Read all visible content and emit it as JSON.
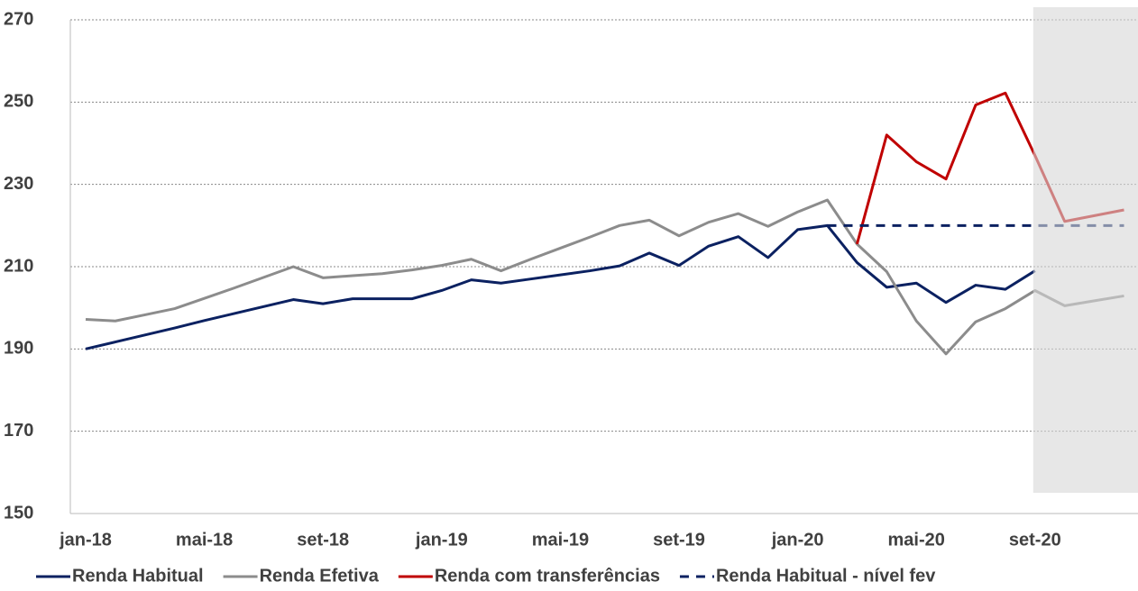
{
  "chart_data": {
    "type": "line",
    "categories": [
      "jan-18",
      null,
      null,
      null,
      "mai-18",
      null,
      null,
      null,
      "set-18",
      null,
      null,
      null,
      "jan-19",
      null,
      null,
      null,
      "mai-19",
      null,
      null,
      null,
      "set-19",
      null,
      null,
      null,
      "jan-20",
      null,
      null,
      null,
      "mai-20",
      null,
      null,
      null,
      "set-20",
      null,
      null,
      null
    ],
    "ylim": [
      150,
      270
    ],
    "yticks": [
      150,
      170,
      190,
      210,
      230,
      250,
      270
    ],
    "grid": true,
    "series": [
      {
        "name": "Renda Habitual",
        "color": "#0b2161",
        "values": [
          190,
          191.7,
          193.4,
          195.1,
          196.9,
          198.6,
          200.3,
          202,
          201,
          202.2,
          202.2,
          202.2,
          204.2,
          206.8,
          206,
          207,
          208,
          209,
          210.2,
          213.3,
          210.3,
          215,
          217.3,
          212.2,
          219,
          220,
          211,
          205,
          206,
          201.3,
          205.5,
          204.5,
          209,
          null,
          null,
          null
        ]
      },
      {
        "name": "Renda Efetiva",
        "color": "#8c8c8c",
        "values": [
          197.2,
          196.8,
          198.3,
          199.8,
          202.3,
          204.8,
          207.4,
          210,
          207.3,
          207.8,
          208.3,
          209.2,
          210.3,
          211.8,
          209,
          211.8,
          214.5,
          217.2,
          220,
          221.3,
          217.5,
          220.8,
          222.9,
          219.8,
          223.3,
          226.2,
          215.5,
          208.8,
          196.8,
          188.8,
          196.6,
          199.8,
          204.2,
          200.5,
          201.7,
          202.9
        ]
      },
      {
        "name": "Renda com transferências",
        "color": "#c00000",
        "values": [
          null,
          null,
          null,
          null,
          null,
          null,
          null,
          null,
          null,
          null,
          null,
          null,
          null,
          null,
          null,
          null,
          null,
          null,
          null,
          null,
          null,
          null,
          null,
          null,
          null,
          null,
          215.5,
          242,
          235.5,
          231.3,
          249.3,
          252.2,
          237,
          221,
          222.4,
          223.8
        ]
      },
      {
        "name": "Renda Habitual - nível fev",
        "color": "#0b2161",
        "dashed": true,
        "values": [
          null,
          null,
          null,
          null,
          null,
          null,
          null,
          null,
          null,
          null,
          null,
          null,
          null,
          null,
          null,
          null,
          null,
          null,
          null,
          null,
          null,
          null,
          null,
          null,
          null,
          220,
          220,
          220,
          220,
          220,
          220,
          220,
          220,
          220,
          220,
          220
        ]
      }
    ]
  }
}
